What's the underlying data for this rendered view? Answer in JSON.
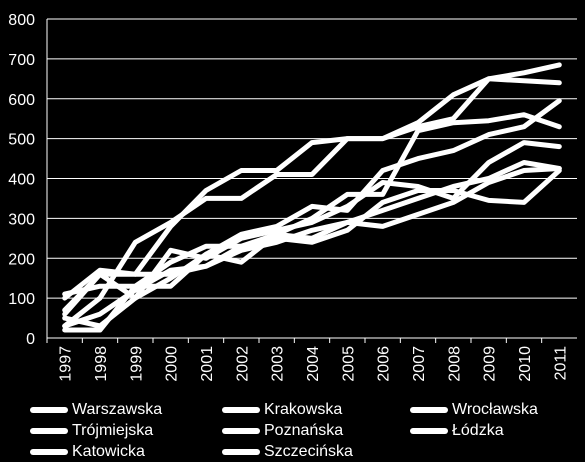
{
  "chart_data": {
    "type": "line",
    "x": [
      "1997",
      "1998",
      "1999",
      "2000",
      "2001",
      "2002",
      "2003",
      "2004",
      "2005",
      "2006",
      "2007",
      "2008",
      "2009",
      "2010",
      "2011"
    ],
    "ylim": [
      0,
      800
    ],
    "yticks": [
      "0",
      "100",
      "200",
      "300",
      "400",
      "500",
      "600",
      "700",
      "800"
    ],
    "grid": true,
    "legend_position": "bottom",
    "series": [
      {
        "name": "Warszawska",
        "values": [
          100,
          170,
          160,
          280,
          370,
          420,
          420,
          490,
          500,
          500,
          540,
          610,
          650,
          665,
          685
        ]
      },
      {
        "name": "Krakowska",
        "values": [
          30,
          100,
          240,
          290,
          350,
          350,
          410,
          410,
          500,
          500,
          530,
          550,
          650,
          645,
          640
        ]
      },
      {
        "name": "Wrocławska",
        "values": [
          50,
          30,
          100,
          150,
          210,
          260,
          280,
          330,
          320,
          420,
          450,
          470,
          510,
          530,
          595
        ]
      },
      {
        "name": "Trójmiejska",
        "values": [
          110,
          130,
          130,
          190,
          230,
          230,
          260,
          300,
          360,
          360,
          520,
          540,
          545,
          560,
          530
        ]
      },
      {
        "name": "Poznańska",
        "values": [
          60,
          160,
          100,
          220,
          200,
          250,
          270,
          290,
          330,
          390,
          380,
          350,
          440,
          490,
          480
        ]
      },
      {
        "name": "Łódzka",
        "values": [
          30,
          60,
          120,
          170,
          180,
          220,
          240,
          270,
          290,
          320,
          350,
          380,
          400,
          440,
          425
        ]
      },
      {
        "name": "Katowicka",
        "values": [
          20,
          20,
          130,
          130,
          210,
          190,
          260,
          250,
          290,
          280,
          310,
          340,
          390,
          420,
          425
        ]
      },
      {
        "name": "Szczecińska",
        "values": [
          70,
          160,
          160,
          160,
          180,
          230,
          250,
          240,
          270,
          340,
          370,
          370,
          345,
          340,
          420
        ]
      }
    ]
  }
}
